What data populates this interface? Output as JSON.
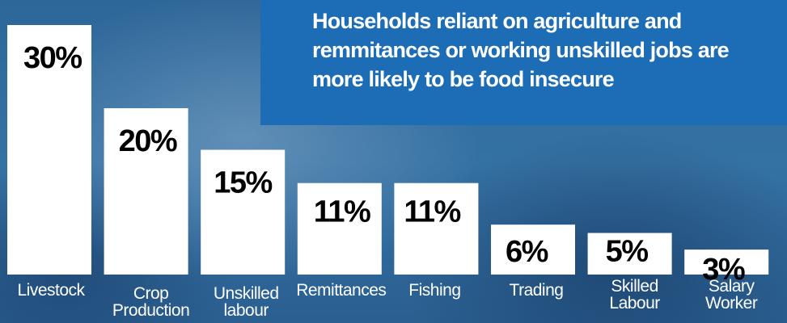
{
  "headline": "Households reliant on agriculture and remmitances or working unskilled jobs  are more likely to be food insecure",
  "colors": {
    "bar": "#ffffff",
    "headline_box": "#1c6db5",
    "value_text": "#000000",
    "label_text": "#ffffff"
  },
  "chart_data": {
    "type": "bar",
    "categories": [
      "Livestock",
      "Crop Production",
      "Unskilled labour",
      "Remittances",
      "Fishing",
      "Trading",
      "Skilled Labour",
      "Salary Worker"
    ],
    "category_lines": [
      [
        "Livestock"
      ],
      [
        "Crop",
        "Production"
      ],
      [
        "Unskilled",
        "labour"
      ],
      [
        "Remittances"
      ],
      [
        "Fishing"
      ],
      [
        "Trading"
      ],
      [
        "Skilled",
        "Labour"
      ],
      [
        "Salary",
        "Worker"
      ]
    ],
    "values": [
      30,
      20,
      15,
      11,
      11,
      6,
      5,
      3
    ],
    "value_labels": [
      "30%",
      "20%",
      "15%",
      "11%",
      "11%",
      "6%",
      "5%",
      "3%"
    ],
    "unit": "%",
    "ylim": [
      0,
      30
    ],
    "grid": false,
    "legend": "none"
  }
}
